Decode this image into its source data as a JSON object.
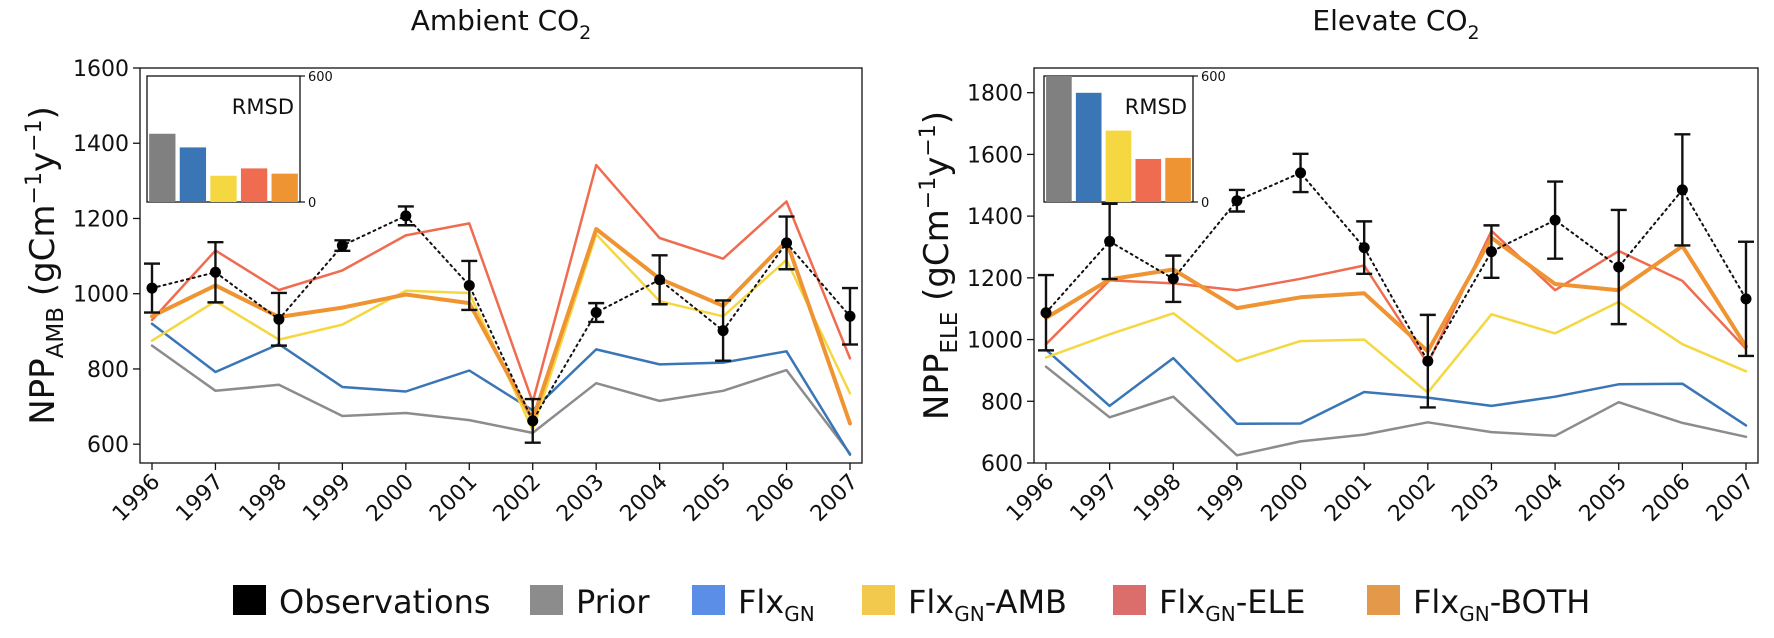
{
  "legend": {
    "items": [
      {
        "name_main": "Observations",
        "name_sub": "",
        "name_suffix": "",
        "color": "#000000"
      },
      {
        "name_main": "Prior",
        "name_sub": "",
        "name_suffix": "",
        "color": "#8c8c8c"
      },
      {
        "name_main": "Flx",
        "name_sub": "GN",
        "name_suffix": "",
        "color": "#5b8ee6"
      },
      {
        "name_main": "Flx",
        "name_sub": "GN",
        "name_suffix": "-AMB",
        "color": "#f2c94c"
      },
      {
        "name_main": "Flx",
        "name_sub": "GN",
        "name_suffix": "-ELE",
        "color": "#db6e6a"
      },
      {
        "name_main": "Flx",
        "name_sub": "GN",
        "name_suffix": "-BOTH",
        "color": "#e3984a"
      }
    ]
  },
  "chart_data": [
    {
      "type": "line",
      "title_main": "Ambient CO",
      "title_sub": "2",
      "ylabel_main": "NPP",
      "ylabel_sub": "AMB",
      "ylabel_unit": " (gCm",
      "ylabel_exp1": "−1",
      "ylabel_mid": "y",
      "ylabel_exp2": "−1",
      "ylabel_end": ")",
      "categories": [
        "1996",
        "1997",
        "1998",
        "1999",
        "2000",
        "2001",
        "2002",
        "2003",
        "2004",
        "2005",
        "2006",
        "2007"
      ],
      "ylim": [
        550,
        1600
      ],
      "yticks": [
        600,
        800,
        1000,
        1200,
        1400,
        1600
      ],
      "observations": {
        "name": "Observations",
        "values": [
          1015,
          1057,
          932,
          1128,
          1207,
          1022,
          662,
          950,
          1037,
          902,
          1135,
          940
        ],
        "err": [
          65,
          80,
          70,
          14,
          25,
          65,
          58,
          25,
          65,
          80,
          70,
          75
        ]
      },
      "series": [
        {
          "name": "Prior",
          "color": "#8c8c8c",
          "width": 2.5,
          "values": [
            862,
            742,
            758,
            675,
            683,
            664,
            630,
            762,
            715,
            742,
            797,
            575
          ]
        },
        {
          "name": "FlxGN",
          "color": "#3a75b5",
          "width": 2.5,
          "values": [
            920,
            792,
            866,
            752,
            740,
            796,
            690,
            852,
            812,
            817,
            847,
            572
          ]
        },
        {
          "name": "FlxGN-AMB",
          "color": "#f5d742",
          "width": 2.5,
          "values": [
            875,
            980,
            878,
            918,
            1008,
            1002,
            638,
            1158,
            980,
            940,
            1090,
            735
          ]
        },
        {
          "name": "FlxGN-ELE",
          "color": "#ef6c50",
          "width": 2.5,
          "values": [
            930,
            1115,
            1010,
            1062,
            1155,
            1187,
            712,
            1342,
            1148,
            1093,
            1245,
            828
          ]
        },
        {
          "name": "FlxGN-BOTH",
          "color": "#ef9432",
          "width": 4,
          "values": [
            940,
            1022,
            938,
            963,
            998,
            975,
            665,
            1172,
            1040,
            968,
            1140,
            655
          ]
        }
      ],
      "inset": {
        "label": "RMSD",
        "ymax_label": "600",
        "ymin_label": "0",
        "ymax": 600,
        "values": [
          325,
          260,
          125,
          160,
          135
        ]
      }
    },
    {
      "type": "line",
      "title_main": "Elevate CO",
      "title_sub": "2",
      "ylabel_main": "NPP",
      "ylabel_sub": "ELE",
      "ylabel_unit": " (gCm",
      "ylabel_exp1": "−1",
      "ylabel_mid": "y",
      "ylabel_exp2": "−1",
      "ylabel_end": ")",
      "categories": [
        "1996",
        "1997",
        "1998",
        "1999",
        "2000",
        "2001",
        "2002",
        "2003",
        "2004",
        "2005",
        "2006",
        "2007"
      ],
      "ylim": [
        600,
        1880
      ],
      "yticks": [
        600,
        800,
        1000,
        1200,
        1400,
        1600,
        1800
      ],
      "observations": {
        "name": "Observations",
        "values": [
          1087,
          1318,
          1197,
          1450,
          1540,
          1298,
          930,
          1285,
          1387,
          1235,
          1485,
          1132
        ],
        "err": [
          122,
          122,
          75,
          35,
          62,
          85,
          150,
          85,
          125,
          185,
          180,
          185
        ]
      },
      "series": [
        {
          "name": "Prior",
          "color": "#8c8c8c",
          "width": 2.5,
          "values": [
            912,
            748,
            815,
            625,
            670,
            692,
            732,
            700,
            688,
            797,
            730,
            685
          ]
        },
        {
          "name": "FlxGN",
          "color": "#3a75b5",
          "width": 2.5,
          "values": [
            967,
            785,
            940,
            727,
            728,
            830,
            812,
            785,
            815,
            855,
            857,
            722
          ]
        },
        {
          "name": "FlxGN-AMB",
          "color": "#f5d742",
          "width": 2.5,
          "values": [
            942,
            1017,
            1085,
            930,
            995,
            1000,
            828,
            1082,
            1020,
            1122,
            985,
            897
          ]
        },
        {
          "name": "FlxGN-ELE",
          "color": "#ef6c50",
          "width": 2.5,
          "values": [
            985,
            1192,
            1182,
            1160,
            1197,
            1240,
            922,
            1352,
            1160,
            1287,
            1190,
            970
          ]
        },
        {
          "name": "FlxGN-BOTH",
          "color": "#ef9432",
          "width": 4,
          "values": [
            1070,
            1195,
            1227,
            1102,
            1137,
            1150,
            962,
            1330,
            1180,
            1160,
            1303,
            978
          ]
        }
      ],
      "inset": {
        "label": "RMSD",
        "ymax_label": "600",
        "ymin_label": "0",
        "ymax": 600,
        "values": [
          600,
          520,
          340,
          205,
          210
        ]
      }
    }
  ]
}
